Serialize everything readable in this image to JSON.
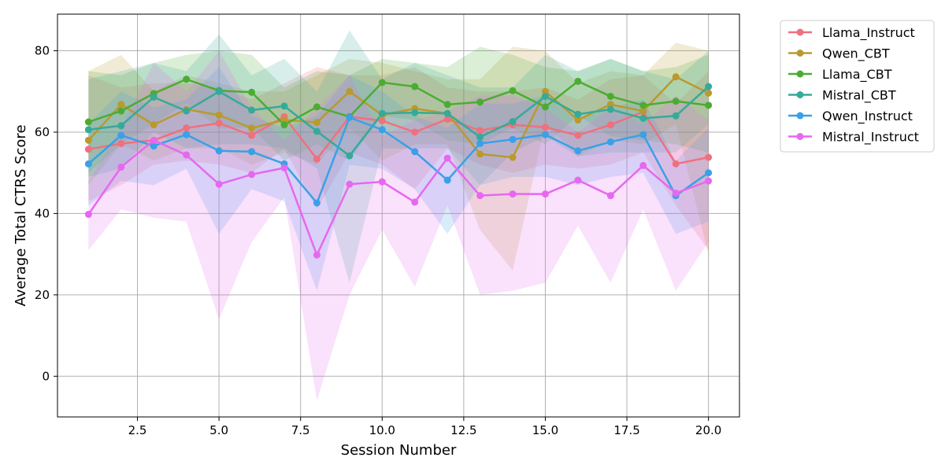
{
  "chart_data": {
    "type": "line",
    "title": "",
    "xlabel": "Session Number",
    "ylabel": "Average Total CTRS Score",
    "xlim": [
      0.05,
      20.95
    ],
    "ylim": [
      -10,
      89
    ],
    "xticks": [
      "2.5",
      "5.0",
      "7.5",
      "10.0",
      "12.5",
      "15.0",
      "17.5",
      "20.0"
    ],
    "yticks": [
      "0",
      "20",
      "40",
      "60",
      "80"
    ],
    "grid": true,
    "legend_position": "outside-top-right",
    "x": [
      1,
      2,
      3,
      4,
      5,
      6,
      7,
      8,
      9,
      10,
      11,
      12,
      13,
      14,
      15,
      16,
      17,
      18,
      19,
      20
    ],
    "series": [
      {
        "name": "Llama_Instruct",
        "color": "#f0707e",
        "values": [
          55.8,
          57.2,
          58,
          61,
          62.2,
          59.2,
          63.8,
          53.4,
          63.8,
          62.8,
          60,
          63.2,
          60.4,
          61.8,
          61.2,
          59.2,
          61.8,
          65,
          52.2,
          53.8
        ],
        "lower": [
          43,
          47,
          52,
          53,
          52,
          50,
          56,
          41,
          55,
          52,
          46,
          56,
          52,
          50,
          52,
          51,
          52,
          55,
          42,
          31
        ],
        "upper": [
          74,
          71,
          72,
          72,
          71,
          68,
          72,
          76,
          74,
          74,
          76,
          71,
          70,
          70,
          71,
          68,
          73,
          74,
          67,
          75
        ]
      },
      {
        "name": "Qwen_CBT",
        "color": "#b99a2e",
        "values": [
          58,
          66.8,
          61.8,
          65.6,
          64.2,
          61,
          63,
          62.4,
          70,
          64.2,
          65.8,
          64.6,
          54.6,
          53.8,
          70,
          63,
          66.8,
          65.2,
          73.6,
          69.6
        ],
        "lower": [
          47,
          57,
          53,
          56,
          56,
          52,
          55,
          52,
          61,
          53,
          57,
          57,
          36,
          26,
          62,
          54,
          58,
          57,
          62,
          30
        ],
        "upper": [
          75,
          79,
          70,
          74,
          72,
          70,
          70,
          74,
          78,
          77,
          75,
          73,
          73,
          81,
          80,
          72,
          75,
          74,
          82,
          80
        ]
      },
      {
        "name": "Llama_CBT",
        "color": "#4cac32",
        "values": [
          62.5,
          65.2,
          69.5,
          73,
          70.2,
          69.8,
          61.8,
          66.2,
          63.8,
          72.2,
          71.2,
          66.8,
          67.4,
          70.2,
          66.2,
          72.5,
          68.8,
          66.6,
          67.6,
          66.6
        ],
        "lower": [
          50,
          57,
          62,
          67,
          61,
          61,
          53,
          57,
          53,
          64,
          63,
          58,
          57,
          61,
          57,
          64,
          59,
          58,
          57,
          55
        ],
        "upper": [
          75,
          74,
          77,
          79,
          80,
          79,
          71,
          75,
          74,
          78,
          77,
          76,
          81,
          79,
          76,
          75,
          78,
          75,
          76,
          79
        ]
      },
      {
        "name": "Mistral_CBT",
        "color": "#35aa9a",
        "values": [
          60.6,
          61.6,
          68.6,
          65.2,
          70,
          65.4,
          66.4,
          60.2,
          54.2,
          64.6,
          64.8,
          64.6,
          58.8,
          62.6,
          68.8,
          64.4,
          65.6,
          63.4,
          64,
          71.2
        ],
        "lower": [
          49,
          51,
          60,
          56,
          57,
          57,
          56,
          51,
          23,
          56,
          56,
          56,
          47,
          55,
          59,
          54,
          55,
          55,
          55,
          62
        ],
        "upper": [
          73,
          75,
          77,
          75,
          84,
          74,
          78,
          70,
          85,
          73,
          77,
          74,
          71,
          71,
          79,
          75,
          78,
          75,
          73,
          80
        ]
      },
      {
        "name": "Qwen_Instruct",
        "color": "#3aa0e8",
        "values": [
          52.2,
          59.2,
          56.6,
          59.4,
          55.4,
          55.2,
          52.2,
          42.6,
          63.6,
          60.6,
          55.2,
          48.2,
          57.2,
          58.2,
          59.4,
          55.4,
          57.6,
          59.4,
          44.4,
          50
        ],
        "lower": [
          42,
          48,
          47,
          51,
          35,
          46,
          43,
          21,
          52,
          51,
          46,
          35,
          47,
          49,
          49,
          47,
          49,
          50,
          35,
          38
        ],
        "upper": [
          62,
          70,
          66,
          68,
          76,
          64,
          61,
          64,
          74,
          70,
          64,
          61,
          67,
          67,
          69,
          63,
          66,
          68,
          53,
          61
        ]
      },
      {
        "name": "Mistral_Instruct",
        "color": "#e668f0",
        "values": [
          39.8,
          51.4,
          58,
          54.4,
          47.2,
          49.6,
          51.2,
          29.8,
          47.2,
          47.8,
          42.8,
          53.6,
          44.4,
          44.8,
          44.8,
          48.2,
          44.4,
          51.8,
          45,
          48
        ],
        "lower": [
          31,
          41,
          39,
          38,
          14,
          33,
          44,
          -6,
          20,
          36,
          22,
          42,
          20,
          21,
          23,
          37,
          23,
          41,
          21,
          33
        ],
        "upper": [
          48,
          61,
          77,
          70,
          80,
          66,
          58,
          66,
          74,
          59,
          63,
          65,
          69,
          69,
          66,
          60,
          66,
          62,
          69,
          63
        ]
      }
    ]
  }
}
